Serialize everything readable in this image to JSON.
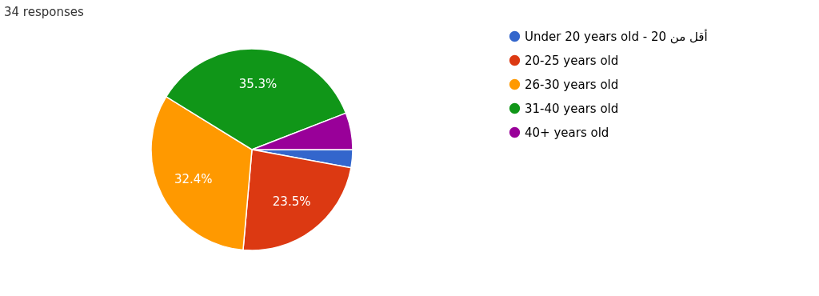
{
  "chart_data": {
    "type": "pie",
    "title": "34 responses",
    "categories": [
      "Under 20 years old - أقل من 20",
      "20-25 years old",
      "26-30 years old",
      "31-40 years old",
      "40+ years old"
    ],
    "values": [
      2.9,
      23.5,
      32.4,
      35.3,
      5.9
    ],
    "colors": [
      "#3366cc",
      "#dc3912",
      "#ff9900",
      "#109618",
      "#990099"
    ],
    "value_labels": [
      null,
      "23.5%",
      "32.4%",
      "35.3%",
      null
    ],
    "legend": "right"
  }
}
